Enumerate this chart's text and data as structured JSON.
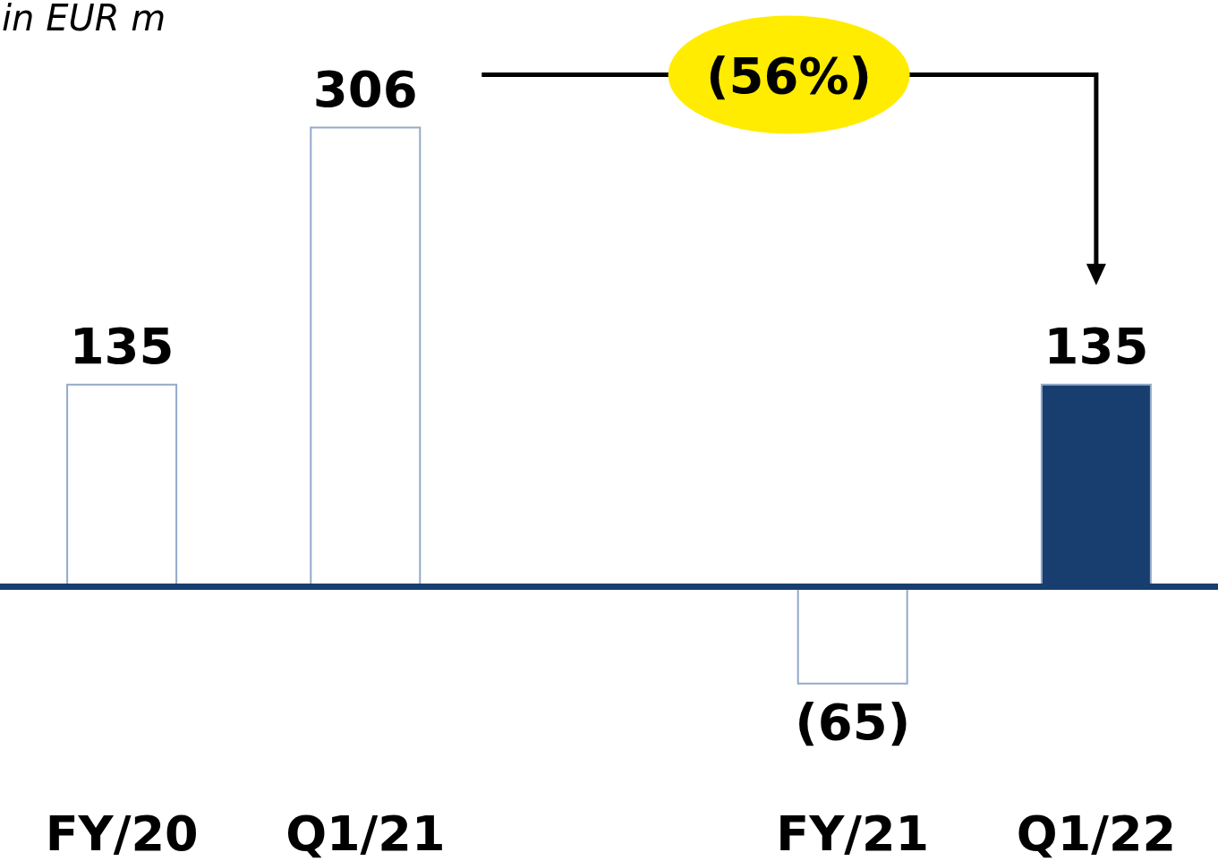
{
  "chart_data": {
    "type": "bar",
    "ylabel": "in EUR m",
    "categories": [
      "FY/20",
      "Q1/21",
      null,
      "FY/21",
      "Q1/22"
    ],
    "values": [
      135,
      306,
      null,
      -65,
      135
    ],
    "colors": [
      "#ffffff",
      "#ffffff",
      null,
      "#ffffff",
      "#173e6e"
    ],
    "value_labels": [
      "135",
      "306",
      null,
      "(65)",
      "135"
    ],
    "ref_lines": [
      {
        "axis": "y",
        "value": 0,
        "color": "#173e6e"
      }
    ],
    "tick_labels": "x",
    "annotations": [
      "(56%)"
    ]
  }
}
